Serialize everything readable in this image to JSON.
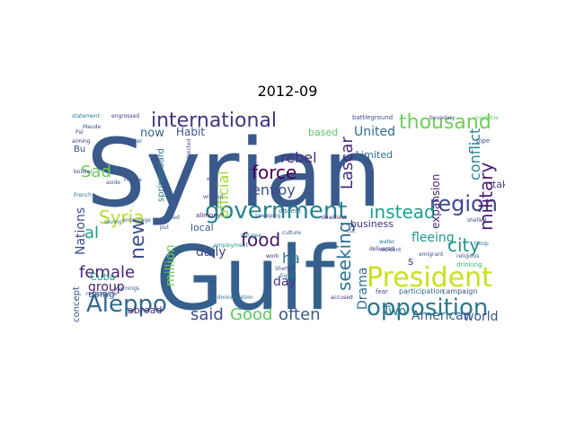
{
  "title": "2012-09",
  "cloud": {
    "words": [
      {
        "text": "Syrian",
        "color": "#3a5a8c"
      },
      {
        "text": "Gulf",
        "color": "#35608d"
      },
      {
        "text": "government",
        "color": "#26828e"
      },
      {
        "text": "President",
        "color": "#c8e020"
      },
      {
        "text": "opposition",
        "color": "#2a788e"
      },
      {
        "text": "international",
        "color": "#46337f"
      },
      {
        "text": "thousand",
        "color": "#6ece58"
      },
      {
        "text": "region",
        "color": "#3f4889"
      },
      {
        "text": "Aleppo",
        "color": "#31688e"
      },
      {
        "text": "Syria",
        "color": "#b5de2b"
      },
      {
        "text": "female",
        "color": "#482576"
      },
      {
        "text": "military",
        "color": "#481c6e"
      },
      {
        "text": "instead",
        "color": "#1f9e89"
      },
      {
        "text": "force",
        "color": "#440154"
      },
      {
        "text": "new",
        "color": "#3b528b"
      },
      {
        "text": "Sad",
        "color": "#6ece58"
      },
      {
        "text": "food",
        "color": "#481668"
      },
      {
        "text": "seeking",
        "color": "#2c718e"
      },
      {
        "text": "city",
        "color": "#21918c"
      },
      {
        "text": "said",
        "color": "#3e4a89"
      },
      {
        "text": "Good",
        "color": "#5ec962"
      },
      {
        "text": "often",
        "color": "#38598c"
      },
      {
        "text": "conflict",
        "color": "#25858e"
      },
      {
        "text": "Lascar",
        "color": "#472c7a"
      },
      {
        "text": "official",
        "color": "#9fda3a"
      },
      {
        "text": "Nations",
        "color": "#3d4d8a"
      },
      {
        "text": "al",
        "color": "#1e9b8a"
      },
      {
        "text": "rebel",
        "color": "#472f7d"
      },
      {
        "text": "envoy",
        "color": "#3e4c8a"
      },
      {
        "text": "group",
        "color": "#482071"
      },
      {
        "text": "million",
        "color": "#6ece58"
      },
      {
        "text": "daily",
        "color": "#414487"
      },
      {
        "text": "ha",
        "color": "#2a788e"
      },
      {
        "text": "day",
        "color": "#453781"
      },
      {
        "text": "Drama",
        "color": "#2d708e"
      },
      {
        "text": "Two",
        "color": "#2c728e"
      },
      {
        "text": "American",
        "color": "#33638d"
      },
      {
        "text": "world",
        "color": "#3b528b"
      },
      {
        "text": "United",
        "color": "#31688e"
      },
      {
        "text": "fleeing",
        "color": "#1f988b"
      },
      {
        "text": "expansion",
        "color": "#482677"
      },
      {
        "text": "business",
        "color": "#472d7b"
      },
      {
        "text": "Limited",
        "color": "#2d708e"
      },
      {
        "text": "taking",
        "color": "#3e4989"
      },
      {
        "text": "now",
        "color": "#31688e"
      },
      {
        "text": "Habit",
        "color": "#3b528b"
      },
      {
        "text": "local",
        "color": "#38598c"
      },
      {
        "text": "springboard",
        "color": "#2a788e"
      },
      {
        "text": "abroad",
        "color": "#482878"
      },
      {
        "text": "using",
        "color": "#33638d"
      },
      {
        "text": "Cuba",
        "color": "#20a486"
      },
      {
        "text": "concept",
        "color": "#3b528b"
      },
      {
        "text": "based",
        "color": "#5ec962"
      },
      {
        "text": "Bu",
        "color": "#3e4a89"
      },
      {
        "text": "s",
        "color": "#414487"
      },
      {
        "text": "drinking",
        "color": "#35b779"
      },
      {
        "text": "troop",
        "color": "#2a788e"
      },
      {
        "text": "campaign",
        "color": "#3b528b"
      },
      {
        "text": "participation",
        "color": "#31688e"
      },
      {
        "text": "fear",
        "color": "#404688"
      },
      {
        "text": "battleground",
        "color": "#3b528b"
      },
      {
        "text": "statement",
        "color": "#2a788e"
      },
      {
        "text": "engrossed",
        "color": "#453781"
      },
      {
        "text": "aiming",
        "color": "#472d7b"
      },
      {
        "text": "French",
        "color": "#2c728e"
      },
      {
        "text": "bolster",
        "color": "#3e4989"
      },
      {
        "text": "alimony",
        "color": "#482475"
      },
      {
        "text": "sweeping",
        "color": "#3b528b"
      },
      {
        "text": "dissent",
        "color": "#2c728e"
      },
      {
        "text": "deadliest",
        "color": "#482576"
      },
      {
        "text": "culture",
        "color": "#3b528b"
      },
      {
        "text": "employment",
        "color": "#21918c"
      },
      {
        "text": "shelled",
        "color": "#3e4989"
      },
      {
        "text": "refugee",
        "color": "#2a788e"
      },
      {
        "text": "delivered",
        "color": "#482878"
      },
      {
        "text": "emigrant",
        "color": "#3b528b"
      },
      {
        "text": "religious",
        "color": "#38598c"
      },
      {
        "text": "boundary",
        "color": "#3e4989"
      },
      {
        "text": "insoluble",
        "color": "#5ec962"
      },
      {
        "text": "pipe",
        "color": "#3b528b"
      },
      {
        "text": "warnings",
        "color": "#3b528b"
      },
      {
        "text": "responsible",
        "color": "#3e4989"
      },
      {
        "text": "administration",
        "color": "#2c728e"
      },
      {
        "text": "accused",
        "color": "#472d7b"
      },
      {
        "text": "Shehab",
        "color": "#3b528b"
      },
      {
        "text": "France",
        "color": "#3e4989"
      },
      {
        "text": "without",
        "color": "#3b528b"
      },
      {
        "text": "latest",
        "color": "#31688e"
      },
      {
        "text": "encourage",
        "color": "#3b528b"
      },
      {
        "text": "saving",
        "color": "#2c728e"
      },
      {
        "text": "Pal",
        "color": "#3b528b"
      },
      {
        "text": "aside",
        "color": "#38598c"
      },
      {
        "text": "put",
        "color": "#3b528b"
      },
      {
        "text": "added",
        "color": "#31688e"
      },
      {
        "text": "cut",
        "color": "#3e4989"
      },
      {
        "text": "water",
        "color": "#2c728e"
      },
      {
        "text": "resident",
        "color": "#3b528b"
      },
      {
        "text": "work",
        "color": "#472d7b"
      },
      {
        "text": "directed",
        "color": "#3e4989"
      },
      {
        "text": "way",
        "color": "#3b528b"
      },
      {
        "text": "Egypt",
        "color": "#2c728e"
      },
      {
        "text": "worker",
        "color": "#3b528b"
      },
      {
        "text": "Maude",
        "color": "#3e4989"
      }
    ]
  }
}
